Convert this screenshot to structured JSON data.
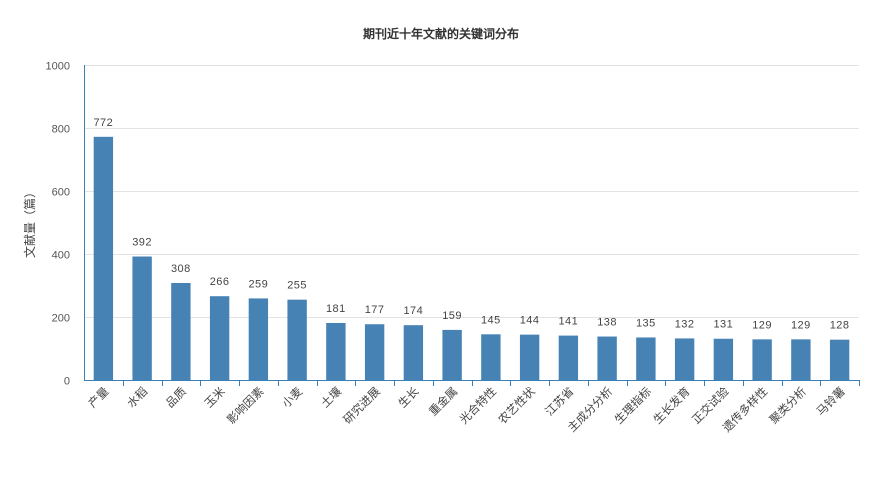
{
  "chart_data": {
    "type": "bar",
    "title": "期刊近十年文献的关键词分布",
    "xlabel": "",
    "ylabel": "文献量（篇）",
    "ylim": [
      0,
      1000
    ],
    "yticks": [
      0,
      200,
      400,
      600,
      800,
      1000
    ],
    "grid": true,
    "bar_color": "#4682b4",
    "axis_color": "#3a7fb5",
    "categories": [
      "产量",
      "水稻",
      "品质",
      "玉米",
      "影响因素",
      "小麦",
      "土壤",
      "研究进展",
      "生长",
      "重金属",
      "光合特性",
      "农艺性状",
      "江苏省",
      "主成分分析",
      "生理指标",
      "生长发育",
      "正交试验",
      "遗传多样性",
      "聚类分析",
      "马铃薯"
    ],
    "values": [
      772,
      392,
      308,
      266,
      259,
      255,
      181,
      177,
      174,
      159,
      145,
      144,
      141,
      138,
      135,
      132,
      131,
      129,
      129,
      128
    ]
  }
}
